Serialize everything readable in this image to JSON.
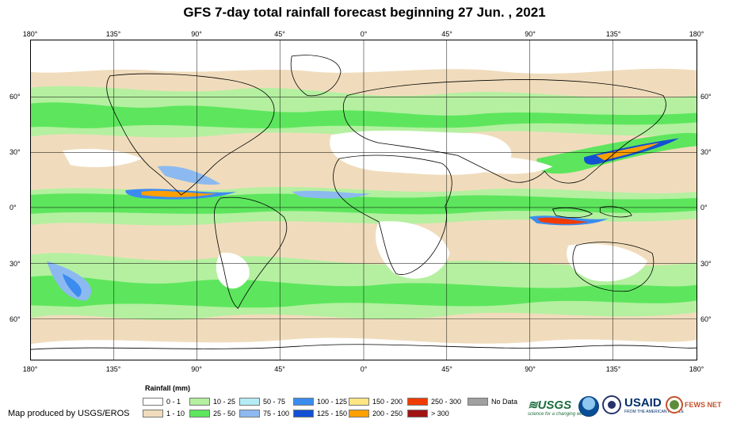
{
  "title": "GFS 7-day total rainfall forecast beginning 27 Jun. , 2021",
  "lon_labels": [
    "180°",
    "135°",
    "90°",
    "45°",
    "0°",
    "45°",
    "90°",
    "135°",
    "180°"
  ],
  "lat_labels": [
    "60°",
    "30°",
    "0°",
    "30°",
    "60°"
  ],
  "legend": {
    "title": "Rainfall (mm)",
    "items": [
      {
        "label": "0 - 1",
        "color": "#ffffff"
      },
      {
        "label": "1 - 10",
        "color": "#f0dcbc"
      },
      {
        "label": "10 - 25",
        "color": "#b4f0a0"
      },
      {
        "label": "25 - 50",
        "color": "#5de65d"
      },
      {
        "label": "50 - 75",
        "color": "#b4ecf5"
      },
      {
        "label": "75 - 100",
        "color": "#8cbaf0"
      },
      {
        "label": "100 - 125",
        "color": "#3c8cf0"
      },
      {
        "label": "125 - 150",
        "color": "#1450d2"
      },
      {
        "label": "150 - 200",
        "color": "#ffe682"
      },
      {
        "label": "200 - 250",
        "color": "#ffa000"
      },
      {
        "label": "250 - 300",
        "color": "#f03c00"
      },
      {
        "label": "> 300",
        "color": "#a01414"
      },
      {
        "label": "No Data",
        "color": "#a0a0a0"
      }
    ]
  },
  "credit": "Map produced by USGS/EROS",
  "logos": {
    "usgs": "≋USGS",
    "usgs_tagline": "science for a changing world",
    "usaid": "USAID",
    "usaid_tagline": "FROM THE AMERICAN PEOPLE",
    "fews": "FEWS NET"
  }
}
